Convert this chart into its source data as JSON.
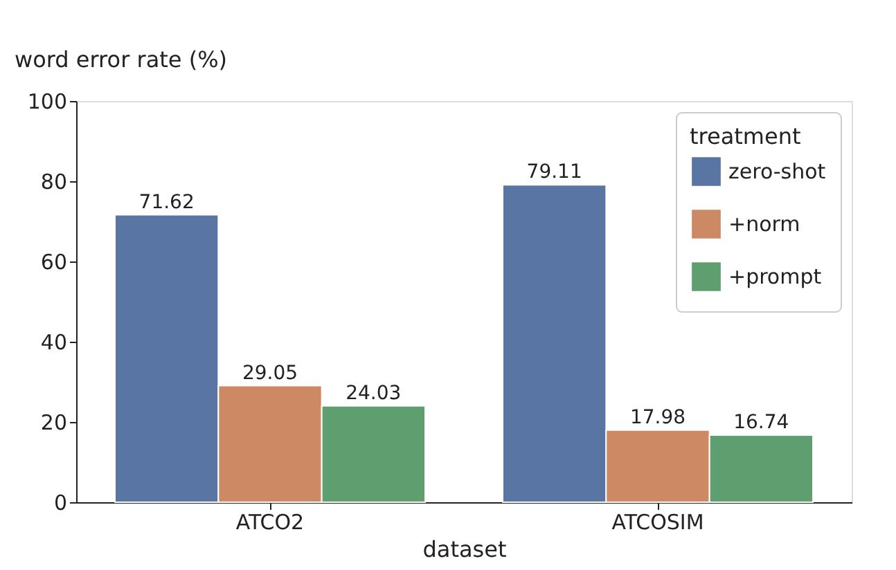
{
  "chart_data": {
    "type": "bar",
    "xlabel": "dataset",
    "ylabel": "word error rate (%)",
    "legend_title": "treatment",
    "categories": [
      "ATCO2",
      "ATCOSIM"
    ],
    "series": [
      {
        "name": "zero-shot",
        "color": "#5975a4",
        "values": [
          71.62,
          79.11
        ]
      },
      {
        "name": "+norm",
        "color": "#cc8963",
        "values": [
          29.05,
          17.98
        ]
      },
      {
        "name": "+prompt",
        "color": "#5f9e6e",
        "values": [
          24.03,
          16.74
        ]
      }
    ],
    "ylim": [
      0,
      100
    ],
    "yticks": [
      0,
      20,
      40,
      60,
      80,
      100
    ],
    "grid": false,
    "legend": "top right",
    "data_labels": true
  }
}
